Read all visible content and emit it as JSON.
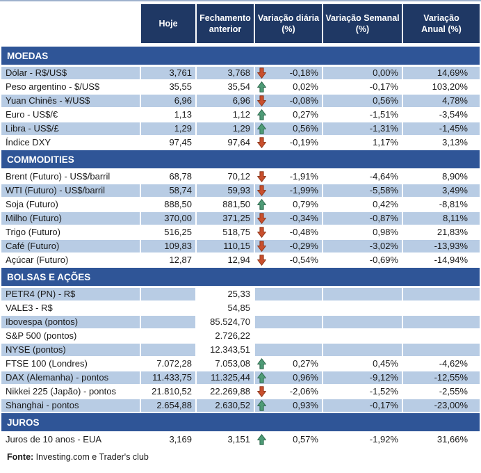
{
  "colors": {
    "header_bg": "#1F3864",
    "section_bg": "#2F5597",
    "row_shade": "#B8CCE4",
    "text": "#1A1A1A",
    "arrow_down_fill": "#C94F2D",
    "arrow_down_stroke": "#8F3A1F",
    "arrow_up_fill": "#4E9B76",
    "arrow_up_stroke": "#2F6A4E"
  },
  "icons": {
    "up": "arrow-up-icon",
    "down": "arrow-down-icon"
  },
  "header": {
    "columns": [
      {
        "id": "hoje",
        "line1": "Hoje",
        "line2": ""
      },
      {
        "id": "fechamento-anterior",
        "line1": "Fechamento",
        "line2": "anterior"
      },
      {
        "id": "variacao-diaria",
        "line1": "Variação diária",
        "line2": "(%)"
      },
      {
        "id": "variacao-semanal",
        "line1": "Variação Semanal",
        "line2": "(%)"
      },
      {
        "id": "variacao-anual",
        "line1": "Variação",
        "line2": "Anual (%)"
      }
    ]
  },
  "sections": [
    {
      "title": "MOEDAS",
      "rows": [
        {
          "label": "Dólar - R$/US$",
          "hoje": "3,761",
          "fechamento": "3,768",
          "arrow": "down",
          "diaria": "-0,18%",
          "semanal": "0,00%",
          "anual": "14,69%",
          "shaded": true
        },
        {
          "label": "Peso argentino - $/US$",
          "hoje": "35,55",
          "fechamento": "35,54",
          "arrow": "up",
          "diaria": "0,02%",
          "semanal": "-0,17%",
          "anual": "103,20%",
          "shaded": false
        },
        {
          "label": "Yuan Chinês - ¥/US$",
          "hoje": "6,96",
          "fechamento": "6,96",
          "arrow": "down",
          "diaria": "-0,08%",
          "semanal": "0,56%",
          "anual": "4,78%",
          "shaded": true
        },
        {
          "label": "Euro - US$/€",
          "hoje": "1,13",
          "fechamento": "1,12",
          "arrow": "up",
          "diaria": "0,27%",
          "semanal": "-1,51%",
          "anual": "-3,54%",
          "shaded": false
        },
        {
          "label": "Libra - US$/£",
          "hoje": "1,29",
          "fechamento": "1,29",
          "arrow": "up",
          "diaria": "0,56%",
          "semanal": "-1,31%",
          "anual": "-1,45%",
          "shaded": true
        },
        {
          "label": "Índice DXY",
          "hoje": "97,45",
          "fechamento": "97,64",
          "arrow": "down",
          "diaria": "-0,19%",
          "semanal": "1,17%",
          "anual": "3,13%",
          "shaded": false
        }
      ]
    },
    {
      "title": "COMMODITIES",
      "rows": [
        {
          "label": "Brent (Futuro) - US$/barril",
          "hoje": "68,78",
          "fechamento": "70,12",
          "arrow": "down",
          "diaria": "-1,91%",
          "semanal": "-4,64%",
          "anual": "8,90%",
          "shaded": false
        },
        {
          "label": "WTI (Futuro) - US$/barril",
          "hoje": "58,74",
          "fechamento": "59,93",
          "arrow": "down",
          "diaria": "-1,99%",
          "semanal": "-5,58%",
          "anual": "3,49%",
          "shaded": true
        },
        {
          "label": "Soja (Futuro)",
          "hoje": "888,50",
          "fechamento": "881,50",
          "arrow": "up",
          "diaria": "0,79%",
          "semanal": "0,42%",
          "anual": "-8,81%",
          "shaded": false
        },
        {
          "label": "Milho (Futuro)",
          "hoje": "370,00",
          "fechamento": "371,25",
          "arrow": "down",
          "diaria": "-0,34%",
          "semanal": "-0,87%",
          "anual": "8,11%",
          "shaded": true
        },
        {
          "label": "Trigo (Futuro)",
          "hoje": "516,25",
          "fechamento": "518,75",
          "arrow": "down",
          "diaria": "-0,48%",
          "semanal": "0,98%",
          "anual": "21,83%",
          "shaded": false
        },
        {
          "label": "Café (Futuro)",
          "hoje": "109,83",
          "fechamento": "110,15",
          "arrow": "down",
          "diaria": "-0,29%",
          "semanal": "-3,02%",
          "anual": "-13,93%",
          "shaded": true
        },
        {
          "label": "Açúcar (Futuro)",
          "hoje": "12,87",
          "fechamento": "12,94",
          "arrow": "down",
          "diaria": "-0,54%",
          "semanal": "-0,69%",
          "anual": "-14,94%",
          "shaded": false
        }
      ]
    },
    {
      "title": "BOLSAS E AÇÕES",
      "rows": [
        {
          "label": "PETR4 (PN) - R$",
          "hoje": "",
          "fechamento": "25,33",
          "arrow": "",
          "diaria": "",
          "semanal": "",
          "anual": "",
          "shaded": true
        },
        {
          "label": "VALE3 - R$",
          "hoje": "",
          "fechamento": "54,85",
          "arrow": "",
          "diaria": "",
          "semanal": "",
          "anual": "",
          "shaded": false
        },
        {
          "label": "Ibovespa (pontos)",
          "hoje": "",
          "fechamento": "85.524,70",
          "arrow": "",
          "diaria": "",
          "semanal": "",
          "anual": "",
          "shaded": true
        },
        {
          "label": "S&P 500 (pontos)",
          "hoje": "",
          "fechamento": "2.726,22",
          "arrow": "",
          "diaria": "",
          "semanal": "",
          "anual": "",
          "shaded": false
        },
        {
          "label": "NYSE (pontos)",
          "hoje": "",
          "fechamento": "12.343,51",
          "arrow": "",
          "diaria": "",
          "semanal": "",
          "anual": "",
          "shaded": true
        },
        {
          "label": "FTSE 100 (Londres)",
          "hoje": "7.072,28",
          "fechamento": "7.053,08",
          "arrow": "up",
          "diaria": "0,27%",
          "semanal": "0,45%",
          "anual": "-4,62%",
          "shaded": false
        },
        {
          "label": "DAX (Alemanha) - pontos",
          "hoje": "11.433,75",
          "fechamento": "11.325,44",
          "arrow": "up",
          "diaria": "0,96%",
          "semanal": "-9,12%",
          "anual": "-12,55%",
          "shaded": true
        },
        {
          "label": "Nikkei 225 (Japão) - pontos",
          "hoje": "21.810,52",
          "fechamento": "22.269,88",
          "arrow": "down",
          "diaria": "-2,06%",
          "semanal": "-1,52%",
          "anual": "-2,55%",
          "shaded": false
        },
        {
          "label": "Shanghai - pontos",
          "hoje": "2.654,88",
          "fechamento": "2.630,52",
          "arrow": "up",
          "diaria": "0,93%",
          "semanal": "-0,17%",
          "anual": "-23,00%",
          "shaded": true
        }
      ]
    },
    {
      "title": "JUROS",
      "rows": [
        {
          "label": "Juros de 10 anos - EUA",
          "hoje": "3,169",
          "fechamento": "3,151",
          "arrow": "up",
          "diaria": "0,57%",
          "semanal": "-1,92%",
          "anual": "31,66%",
          "shaded": false
        }
      ]
    }
  ],
  "footer": {
    "bold": "Fonte:",
    "text": " Investing.com e Trader's club"
  }
}
